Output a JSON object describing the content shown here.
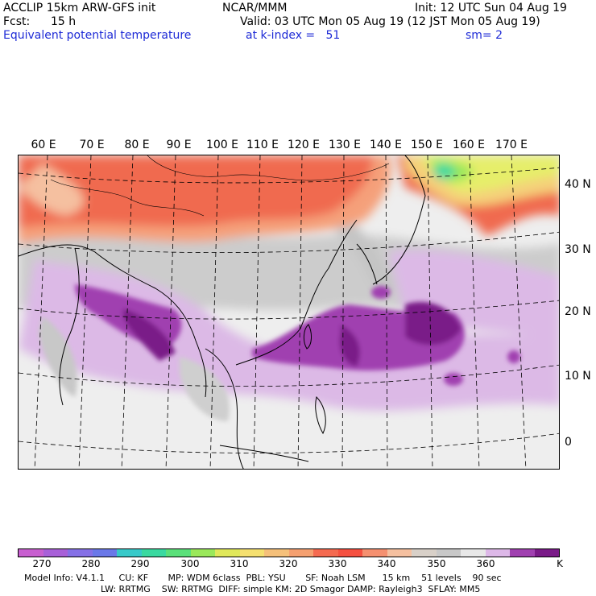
{
  "header": {
    "model": "ACCLIP 15km ARW-GFS init",
    "center": "NCAR/MMM",
    "init": "Init: 12 UTC Sun 04 Aug 19",
    "fcst_label": "Fcst:",
    "fcst_value": "15 h",
    "valid": "Valid: 03 UTC Mon 05 Aug 19 (12 JST Mon 05 Aug 19)",
    "field": "Equivalent potential temperature",
    "level": "at k-index =   51",
    "smooth": "sm= 2"
  },
  "longitude_labels": [
    "60 E",
    "70 E",
    "80 E",
    "90 E",
    "100 E",
    "110 E",
    "120 E",
    "130 E",
    "140 E",
    "150 E",
    "160 E",
    "170 E"
  ],
  "latitude_labels": [
    "40 N",
    "30 N",
    "20 N",
    "10 N",
    "0"
  ],
  "colorbar": {
    "colors": [
      "#c85fd0",
      "#a860d8",
      "#8570e6",
      "#6a78e8",
      "#38c9c9",
      "#3ad9a0",
      "#5ae07a",
      "#9ae85a",
      "#e0e85a",
      "#f5e070",
      "#f5c07a",
      "#f5a070",
      "#f56a50",
      "#f55040",
      "#f59070",
      "#f5c0a0",
      "#d8d0c8",
      "#c8c8c8",
      "#e8e8e8",
      "#ddb8e8",
      "#a040b0",
      "#7a1a88"
    ],
    "labels": [
      "270",
      "280",
      "290",
      "300",
      "310",
      "320",
      "330",
      "340",
      "350",
      "360"
    ],
    "unit": "K"
  },
  "footer": {
    "line1": "Model Info: V4.1.1     CU: KF       MP: WDM 6class  PBL: YSU       SF: Noah LSM      15 km    51 levels    90 sec",
    "line2": "LW: RRTMG    SW: RRTMG  DIFF: simple KM: 2D Smagor DAMP: Rayleigh3  SFLAY: MM5"
  }
}
